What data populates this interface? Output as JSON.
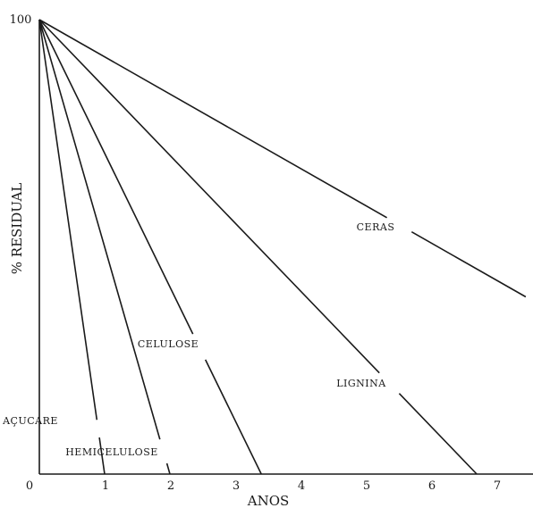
{
  "chart_data": {
    "type": "line",
    "xlabel": "ANOS",
    "ylabel": "% RESIDUAL",
    "xlim": [
      0,
      7.5
    ],
    "ylim": [
      0,
      100
    ],
    "x_ticks": [
      0,
      1,
      2,
      3,
      4,
      5,
      6,
      7
    ],
    "y_ticks": [
      100
    ],
    "grid": false,
    "series": [
      {
        "name": "AÇUCARE",
        "x": [
          0,
          1.0
        ],
        "y": [
          100,
          0
        ]
      },
      {
        "name": "HEMICELULOSE",
        "x": [
          0,
          2.0
        ],
        "y": [
          100,
          0
        ]
      },
      {
        "name": "CELULOSE",
        "x": [
          0,
          3.4
        ],
        "y": [
          100,
          0
        ]
      },
      {
        "name": "LIGNINA",
        "x": [
          0,
          6.7
        ],
        "y": [
          100,
          0
        ]
      },
      {
        "name": "CERAS",
        "x": [
          0,
          7.45
        ],
        "y": [
          100,
          39
        ]
      }
    ]
  }
}
